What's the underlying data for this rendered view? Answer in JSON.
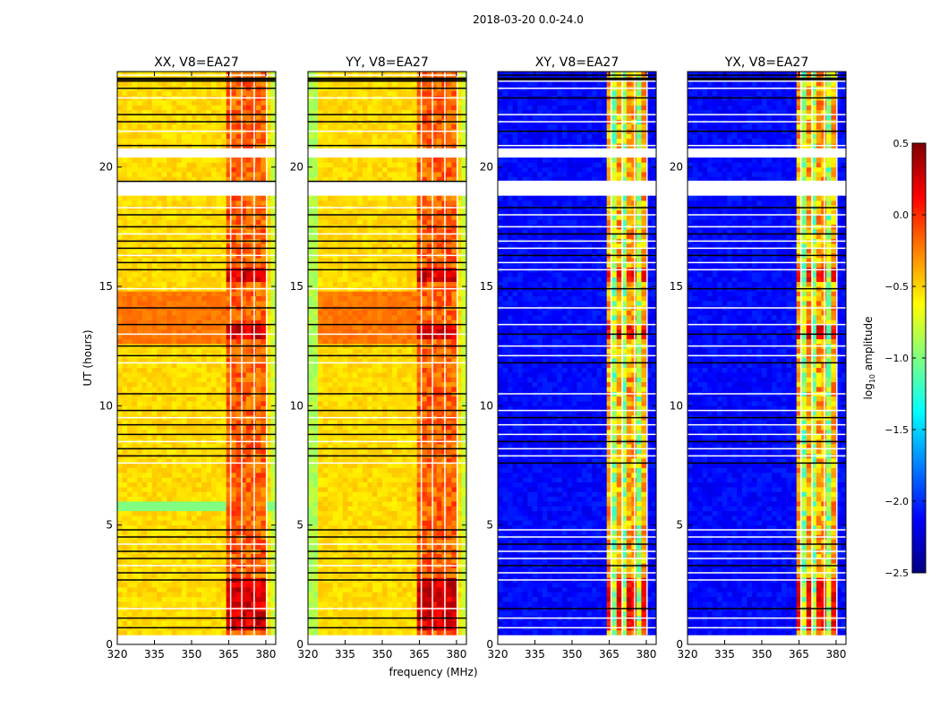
{
  "chart_data": {
    "type": "heatmap",
    "title": "2018-03-20 0.0-24.0",
    "xlabel": "frequency (MHz)",
    "ylabel": "UT (hours)",
    "xlim": [
      320,
      384
    ],
    "ylim": [
      0,
      24
    ],
    "xticks": [
      320,
      335,
      350,
      365,
      380
    ],
    "yticks": [
      0,
      5,
      10,
      15,
      20
    ],
    "panels": [
      {
        "name": "XX",
        "title": "XX, V8=EA27",
        "kind": "parallel"
      },
      {
        "name": "YY",
        "title": "YY, V8=EA27",
        "kind": "parallel"
      },
      {
        "name": "XY",
        "title": "XY, V8=EA27",
        "kind": "cross"
      },
      {
        "name": "YX",
        "title": "YX, V8=EA27",
        "kind": "cross"
      }
    ],
    "colorbar": {
      "label_prefix": "log",
      "label_sub": "10",
      "label_suffix": " amplitude",
      "range": [
        -2.5,
        0.5
      ],
      "ticks": [
        "0.5",
        "0.0",
        "−0.5",
        "−1.0",
        "−1.5",
        "−2.0",
        "−2.5"
      ],
      "colormap": "jet"
    },
    "data_start_hour": 0.4,
    "data_end_hour": 24.0,
    "rfi_band_mhz": [
      363,
      380
    ],
    "rfi_channels_mhz": [
      363.5,
      368,
      373,
      378
    ],
    "gap_intervals_hours": [
      [
        18.8,
        19.3
      ],
      [
        20.4,
        20.7
      ]
    ],
    "flag_lines_hours": [
      0.7,
      1.1,
      1.5,
      2.7,
      3.0,
      3.3,
      3.6,
      3.9,
      4.2,
      4.5,
      4.8,
      7.6,
      7.9,
      8.2,
      8.5,
      8.8,
      9.2,
      9.5,
      9.8,
      10.5,
      11.8,
      12.1,
      12.5,
      13.0,
      13.4,
      14.1,
      14.9,
      15.7,
      16.0,
      16.3,
      16.6,
      16.9,
      17.2,
      17.5,
      18.0,
      18.3,
      19.4,
      20.9,
      21.5,
      21.9,
      22.2,
      22.9,
      23.3,
      23.6,
      23.85
    ],
    "parallel_bright_bands_hours": [
      [
        13.0,
        14.7
      ],
      [
        12.5,
        13.2
      ]
    ],
    "parallel_hot_spots_hours": [
      [
        0.5,
        2.8
      ],
      [
        12.6,
        13.3
      ],
      [
        15.1,
        15.6
      ]
    ]
  }
}
